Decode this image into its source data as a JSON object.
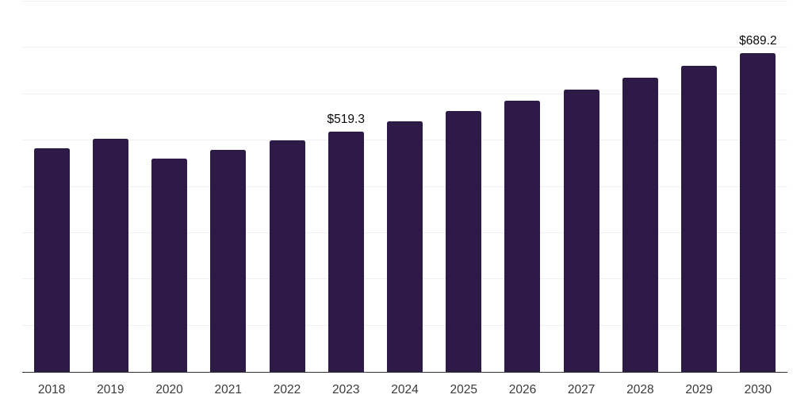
{
  "chart_data": {
    "type": "bar",
    "title": "",
    "xlabel": "",
    "ylabel": "",
    "categories": [
      "2018",
      "2019",
      "2020",
      "2021",
      "2022",
      "2023",
      "2024",
      "2025",
      "2026",
      "2027",
      "2028",
      "2029",
      "2030"
    ],
    "values": [
      483.6,
      503.5,
      461.0,
      480.0,
      500.5,
      519.3,
      540.7,
      563.0,
      586.3,
      610.5,
      635.7,
      661.9,
      689.2
    ],
    "data_labels": [
      {
        "category": "2023",
        "text": "$519.3"
      },
      {
        "category": "2030",
        "text": "$689.2"
      }
    ],
    "ylim": [
      0,
      800
    ],
    "grid": true,
    "grid_interval": 100,
    "legend": false,
    "colors": {
      "bar": "#2E1A47",
      "gridline": "#F1F1F4",
      "axis_line": "#333333",
      "tick_label": "#3A3A3A",
      "data_label": "#0A0A0A",
      "background": "#FFFFFF"
    }
  }
}
